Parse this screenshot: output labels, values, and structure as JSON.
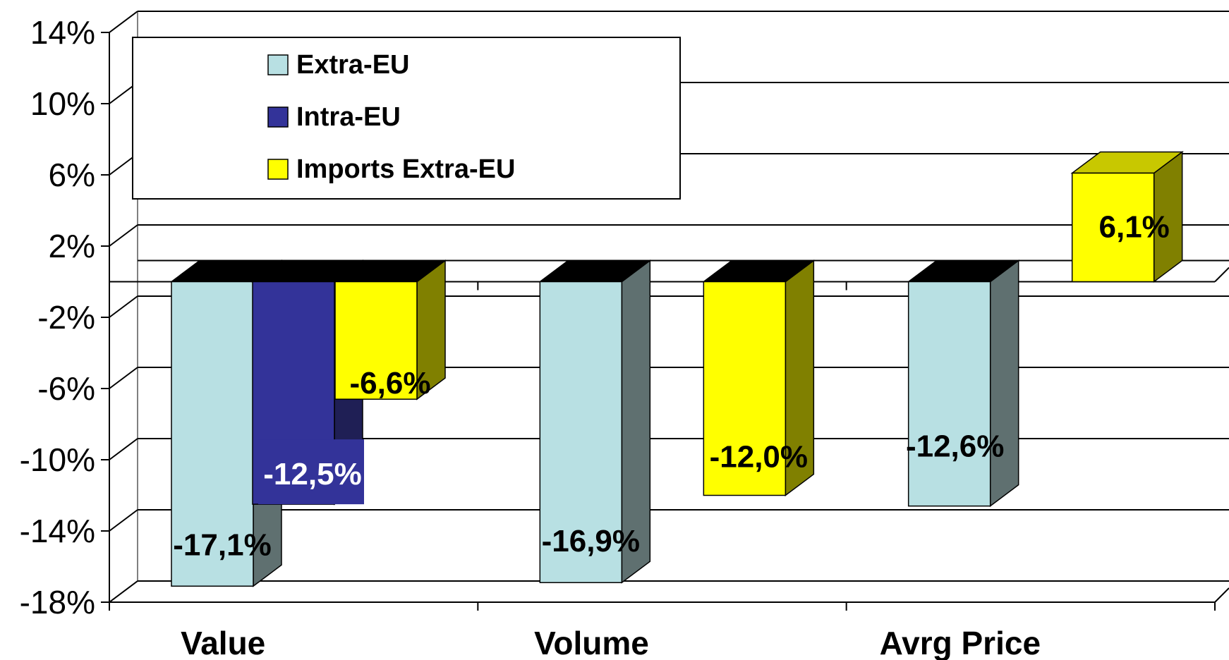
{
  "chart_data": {
    "type": "bar",
    "categories": [
      "Value",
      "Volume",
      "Avrg Price"
    ],
    "y_ticks": [
      "14%",
      "10%",
      "6%",
      "2%",
      "-2%",
      "-6%",
      "-10%",
      "-14%",
      "-18%"
    ],
    "ylim": [
      -18,
      14
    ],
    "grid": true,
    "legend_position": "top-left",
    "series": [
      {
        "name": "Extra-EU",
        "color": "#b8e0e3",
        "side_color": "#5f7070",
        "values": [
          -17.1,
          -16.9,
          -12.6
        ],
        "labels": [
          "-17,1%",
          "-16,9%",
          "-12,6%"
        ]
      },
      {
        "name": "Intra-EU",
        "color": "#333399",
        "side_color": "#1f1f55",
        "values": [
          -12.5,
          null,
          null
        ],
        "labels": [
          "-12,5%",
          "",
          ""
        ]
      },
      {
        "name": "Imports Extra-EU",
        "color": "#ffff00",
        "side_color": "#808000",
        "values": [
          -6.6,
          -12.0,
          6.1
        ],
        "labels": [
          "-6,6%",
          "-12,0%",
          "6,1%"
        ]
      }
    ]
  }
}
